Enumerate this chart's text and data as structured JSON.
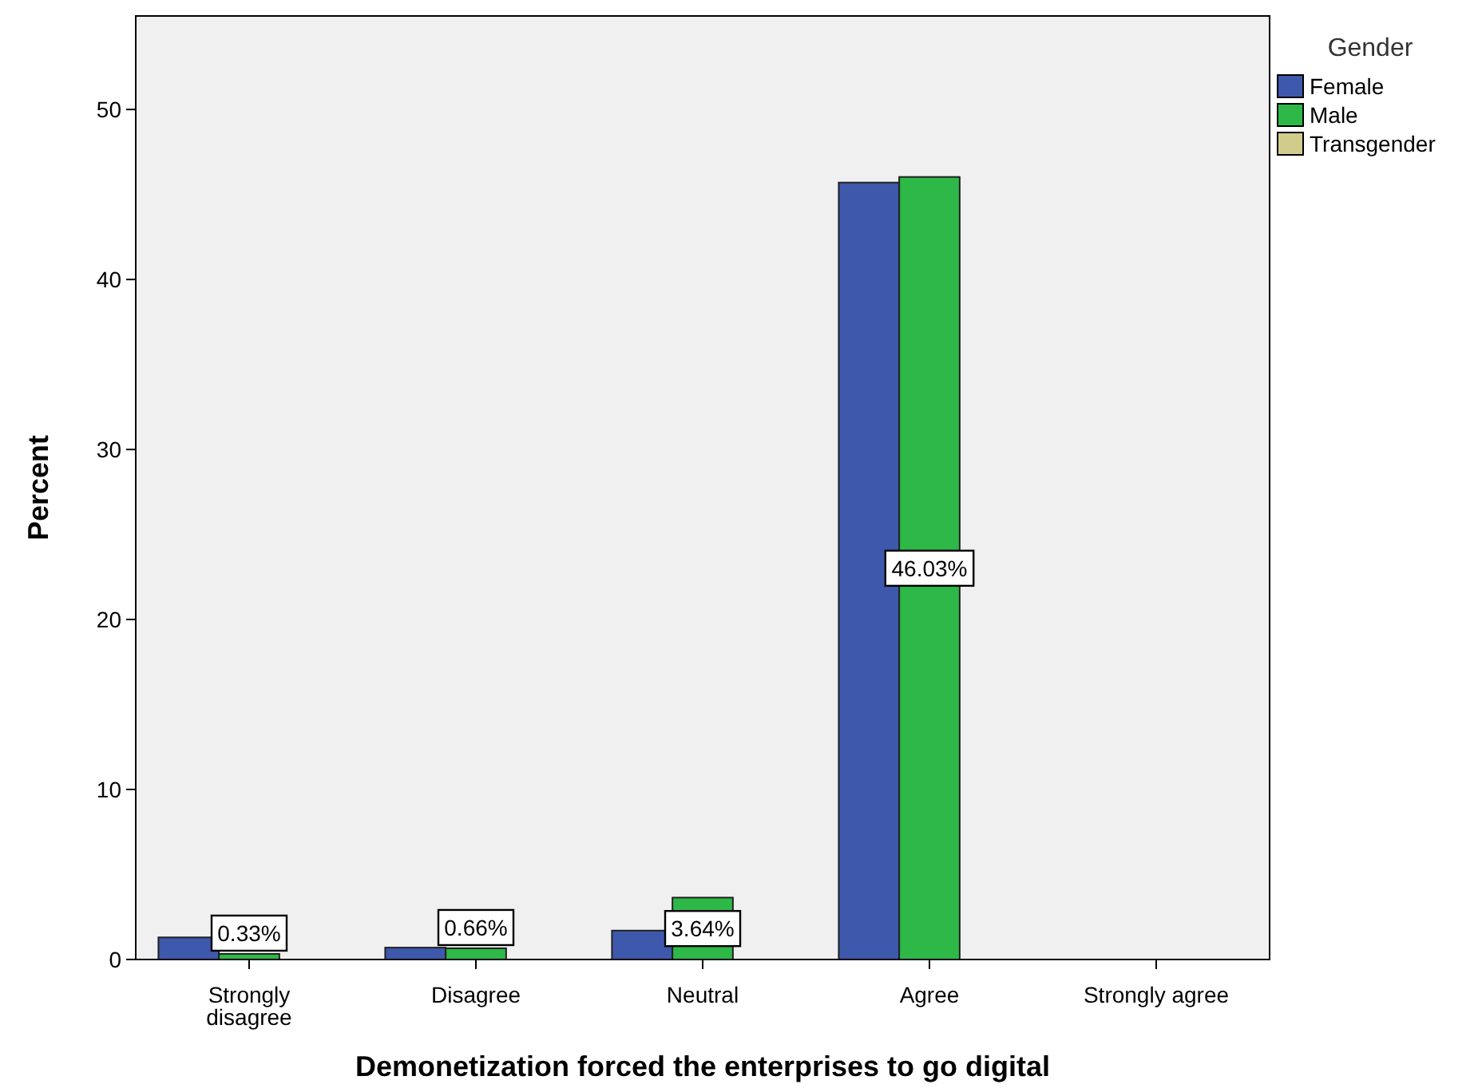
{
  "chart_data": {
    "type": "bar",
    "xlabel": "Demonetization forced the enterprises to go digital",
    "ylabel": "Percent",
    "legend_title": "Gender",
    "legend": "right",
    "grid": false,
    "categories": [
      "Strongly\ndisagree",
      "Disagree",
      "Neutral",
      "Agree",
      "Strongly agree"
    ],
    "ylim": [
      0,
      55.5
    ],
    "yticks": [
      0,
      10,
      20,
      30,
      40,
      50
    ],
    "series": [
      {
        "name": "Female",
        "color": "#3e58ac",
        "values": [
          1.3,
          0.7,
          1.7,
          45.7,
          null
        ]
      },
      {
        "name": "Male",
        "color": "#2eb848",
        "values": [
          0.33,
          0.66,
          3.64,
          46.03,
          null
        ],
        "value_labels": [
          "0.33%",
          "0.66%",
          "3.64%",
          "46.03%",
          null
        ]
      },
      {
        "name": "Transgender",
        "color": "#d2cc8c",
        "values": [
          null,
          null,
          null,
          null,
          null
        ]
      }
    ]
  }
}
